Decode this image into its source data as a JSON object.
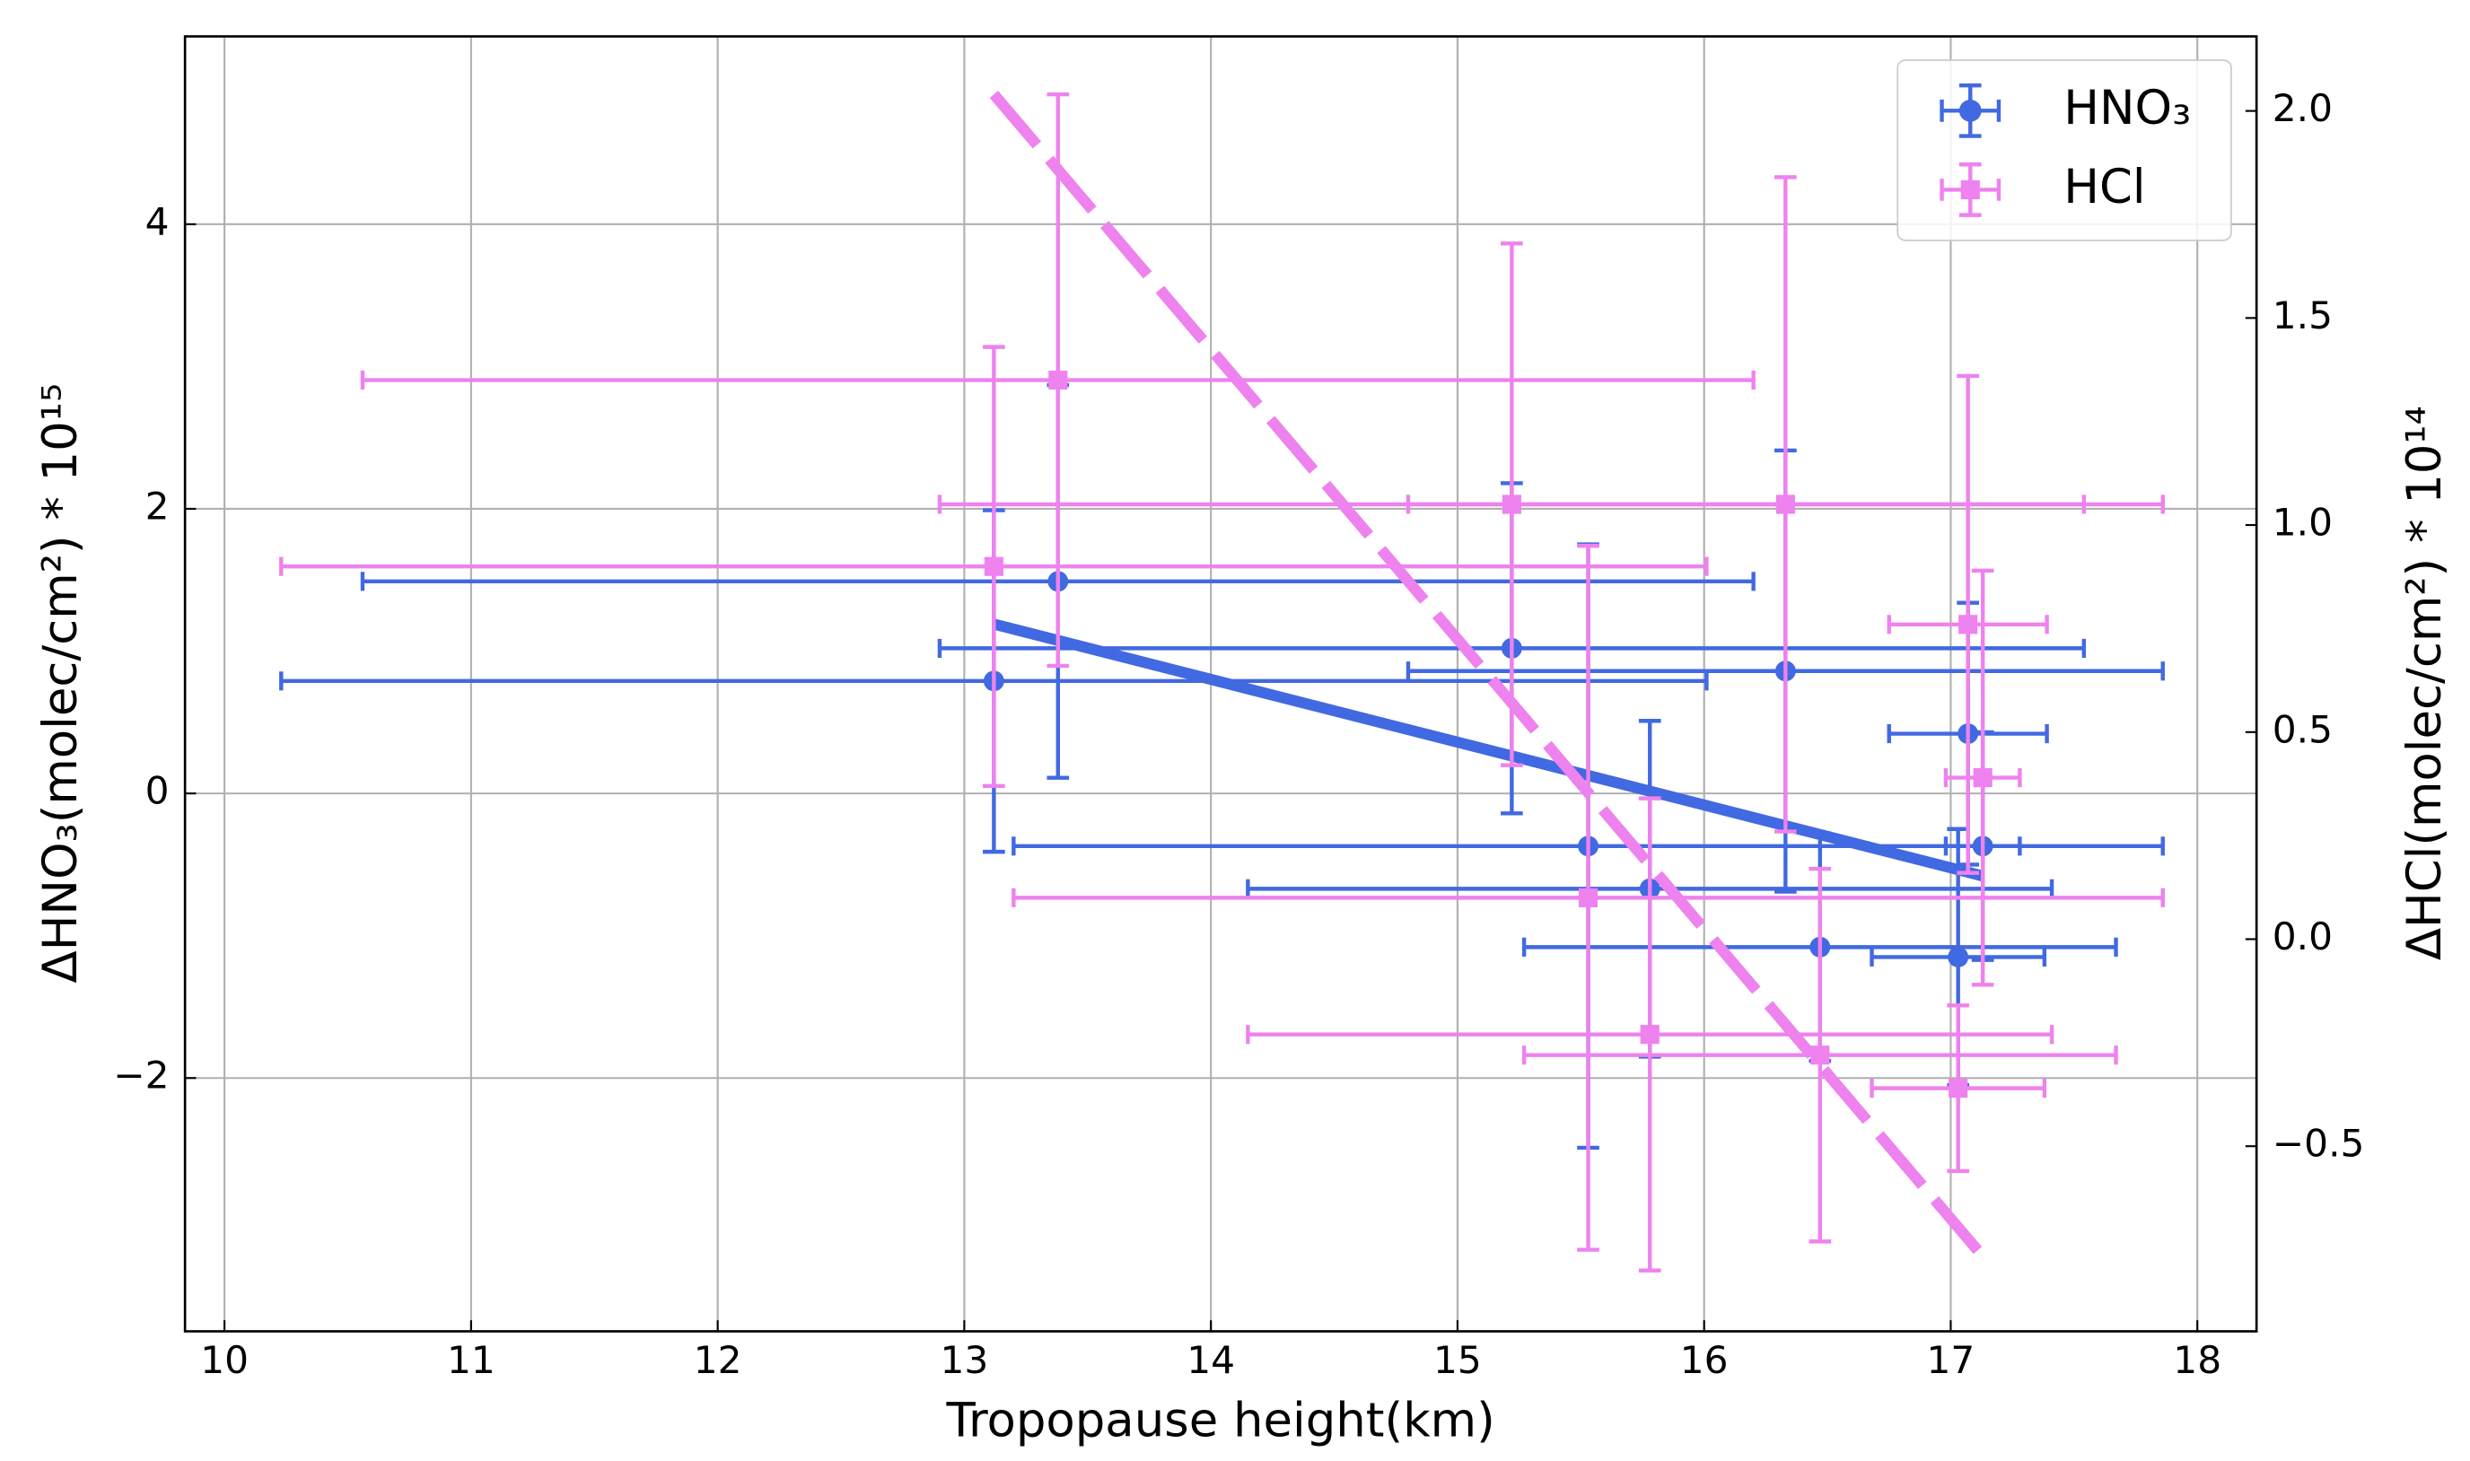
{
  "chart_data": {
    "type": "errorbar",
    "xlabel": "Tropopause height(km)",
    "ylabel": "ΔHNO₃(molec/cm²) * 10¹⁵",
    "y2label": "ΔHCl(molec/cm²) * 10¹⁴",
    "xlim": [
      9.84,
      18.24
    ],
    "ylim": [
      -3.78,
      5.32
    ],
    "y2lim": [
      -0.947,
      2.18
    ],
    "xticks": [
      10,
      11,
      12,
      13,
      14,
      15,
      16,
      17,
      18
    ],
    "yticks": [
      {
        "value": -2,
        "label": "−2"
      },
      0,
      2,
      4
    ],
    "y2ticks": [
      {
        "value": -0.5,
        "label": "−0.5"
      },
      {
        "value": 0,
        "label": "0.0"
      },
      0.5,
      {
        "value": 1,
        "label": "1.0"
      },
      1.5,
      {
        "value": 2,
        "label": "2.0"
      }
    ],
    "grid": true,
    "legend": "upper right",
    "series": [
      {
        "name": "HNO₃",
        "color": "#4169e1",
        "marker": "circle",
        "x": [
          13.12,
          13.38,
          15.22,
          16.33,
          17.07,
          15.53,
          15.78,
          16.47,
          17.03,
          17.13
        ],
        "values": [
          0.79,
          1.49,
          1.02,
          0.86,
          0.42,
          -0.37,
          -0.67,
          -1.08,
          -1.15,
          -0.37
        ],
        "xerr": [
          2.89,
          2.82,
          2.32,
          1.53,
          0.32,
          2.33,
          1.63,
          1.2,
          0.35,
          0.15
        ],
        "yerr": [
          1.2,
          1.38,
          1.16,
          1.55,
          0.92,
          2.12,
          1.18,
          0.8,
          0.9,
          0.8
        ],
        "fit": {
          "x": [
            13.12,
            17.13
          ],
          "values": [
            1.19,
            -0.58
          ]
        }
      },
      {
        "name": "HCl",
        "color": "#ee82ee",
        "marker": "square",
        "axis": "y2",
        "x": [
          13.12,
          13.38,
          15.22,
          16.33,
          17.07,
          15.53,
          15.78,
          16.47,
          17.03,
          17.13
        ],
        "values": [
          0.9,
          1.35,
          1.05,
          1.05,
          0.76,
          0.1,
          -0.23,
          -0.28,
          -0.36,
          0.39
        ],
        "xerr": [
          2.89,
          2.82,
          2.32,
          1.53,
          0.32,
          2.33,
          1.63,
          1.2,
          0.35,
          0.15
        ],
        "yerr": [
          0.53,
          0.69,
          0.63,
          0.79,
          0.6,
          0.85,
          0.57,
          0.45,
          0.2,
          0.5
        ],
        "fit": {
          "x": [
            13.12,
            17.15
          ],
          "values": [
            2.04,
            -0.78
          ]
        }
      }
    ]
  }
}
